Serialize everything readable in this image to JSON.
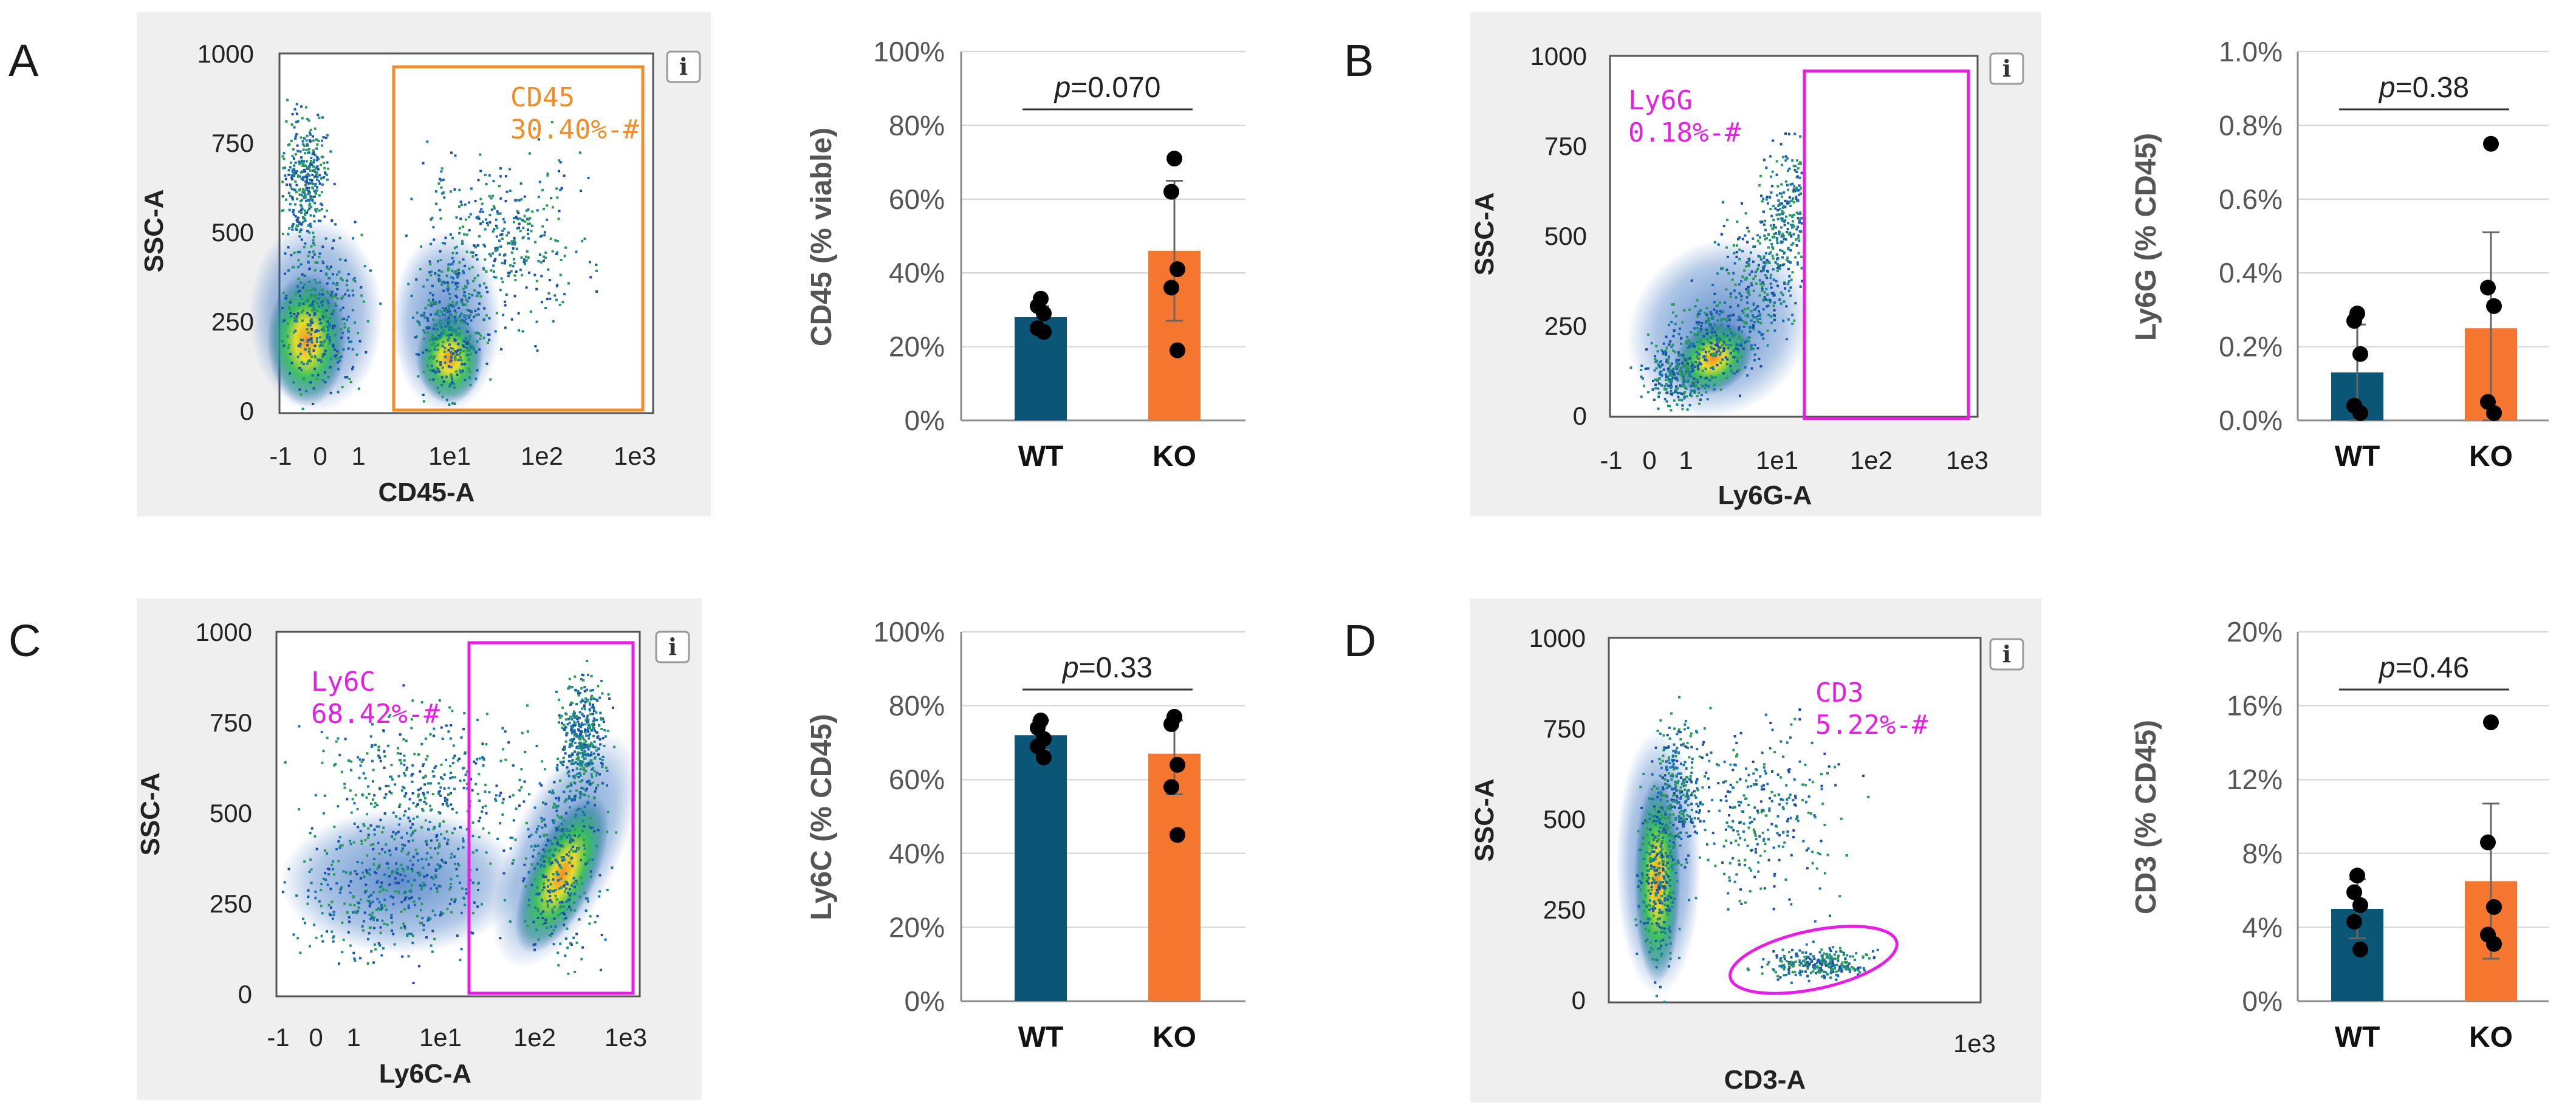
{
  "panels": [
    {
      "letter": "A",
      "flow": {
        "x_label": "CD45-A",
        "y_label": "SSC-A",
        "x_ticks": [
          "-1",
          "0",
          "1",
          "1e1",
          "1e2",
          "1e3"
        ],
        "y_ticks": [
          "1000",
          "750",
          "500",
          "250",
          "0"
        ],
        "gate_name": "CD45",
        "gate_value": "30.40%-#",
        "gate_shape": "rectangle",
        "gate_color": "#f28c28",
        "info_icon": "info-icon"
      },
      "bar": {
        "ylabel": "CD45 (% viable)",
        "yticks": [
          "100%",
          "80%",
          "60%",
          "40%",
          "20%",
          "0%"
        ],
        "p_value": "0.070"
      }
    },
    {
      "letter": "B",
      "flow": {
        "x_label": "Ly6G-A",
        "y_label": "SSC-A",
        "x_ticks": [
          "-1",
          "0",
          "1",
          "1e1",
          "1e2",
          "1e3"
        ],
        "y_ticks": [
          "1000",
          "750",
          "500",
          "250",
          "0"
        ],
        "gate_name": "Ly6G",
        "gate_value": "0.18%-#",
        "gate_shape": "rectangle",
        "gate_color": "#e61ee6",
        "info_icon": "info-icon"
      },
      "bar": {
        "ylabel": "Ly6G (% CD45)",
        "yticks": [
          "1.0%",
          "0.8%",
          "0.6%",
          "0.4%",
          "0.2%",
          "0.0%"
        ],
        "p_value": "0.38"
      }
    },
    {
      "letter": "C",
      "flow": {
        "x_label": "Ly6C-A",
        "y_label": "SSC-A",
        "x_ticks": [
          "-1",
          "0",
          "1",
          "1e1",
          "1e2",
          "1e3"
        ],
        "y_ticks": [
          "1000",
          "750",
          "500",
          "250",
          "0"
        ],
        "gate_name": "Ly6C",
        "gate_value": "68.42%-#",
        "gate_shape": "rectangle",
        "gate_color": "#e61ee6",
        "info_icon": "info-icon"
      },
      "bar": {
        "ylabel": "Ly6C (% CD45)",
        "yticks": [
          "100%",
          "80%",
          "60%",
          "40%",
          "20%",
          "0%"
        ],
        "p_value": "0.33"
      }
    },
    {
      "letter": "D",
      "flow": {
        "x_label": "CD3-A",
        "y_label": "SSC-A",
        "x_ticks": [
          "1e3"
        ],
        "y_ticks": [
          "1000",
          "750",
          "500",
          "250",
          "0"
        ],
        "gate_name": "CD3",
        "gate_value": "5.22%-#",
        "gate_shape": "ellipse",
        "gate_color": "#e61ee6",
        "info_icon": "info-icon"
      },
      "bar": {
        "ylabel": "CD3 (% CD45)",
        "yticks": [
          "20%",
          "16%",
          "12%",
          "8%",
          "4%",
          "0%"
        ],
        "p_value": "0.46"
      }
    }
  ],
  "chart_data": [
    {
      "type": "bar",
      "title": "",
      "xlabel": "",
      "ylabel": "CD45 (% viable)",
      "ylim": [
        0,
        100
      ],
      "categories": [
        "WT",
        "KO"
      ],
      "colors": [
        "#0b5676",
        "#f4762f"
      ],
      "values": [
        28,
        46
      ],
      "error_upper": [
        31,
        65
      ],
      "error_lower": [
        25,
        27
      ],
      "points": [
        [
          33,
          31,
          29,
          25,
          24
        ],
        [
          71,
          62,
          41,
          36,
          19
        ]
      ],
      "annotation": "p=0.070"
    },
    {
      "type": "bar",
      "title": "",
      "xlabel": "",
      "ylabel": "Ly6G (% CD45)",
      "ylim": [
        0,
        1.0
      ],
      "categories": [
        "WT",
        "KO"
      ],
      "colors": [
        "#0b5676",
        "#f4762f"
      ],
      "values": [
        0.13,
        0.25
      ],
      "error_upper": [
        0.26,
        0.51
      ],
      "error_lower": [
        0.0,
        0.0
      ],
      "points": [
        [
          0.29,
          0.27,
          0.18,
          0.04,
          0.02
        ],
        [
          0.75,
          0.36,
          0.31,
          0.05,
          0.02
        ]
      ],
      "annotation": "p=0.38"
    },
    {
      "type": "bar",
      "title": "",
      "xlabel": "",
      "ylabel": "Ly6C (% CD45)",
      "ylim": [
        0,
        100
      ],
      "categories": [
        "WT",
        "KO"
      ],
      "colors": [
        "#0b5676",
        "#f4762f"
      ],
      "values": [
        72,
        67
      ],
      "error_upper": [
        76,
        76
      ],
      "error_lower": [
        68,
        56
      ],
      "points": [
        [
          76,
          74,
          71,
          69,
          66
        ],
        [
          77,
          75,
          64,
          58,
          45
        ]
      ],
      "annotation": "p=0.33"
    },
    {
      "type": "bar",
      "title": "",
      "xlabel": "",
      "ylabel": "CD3 (% CD45)",
      "ylim": [
        0,
        20
      ],
      "categories": [
        "WT",
        "KO"
      ],
      "colors": [
        "#0b5676",
        "#f4762f"
      ],
      "values": [
        5.0,
        6.5
      ],
      "error_upper": [
        6.6,
        10.7
      ],
      "error_lower": [
        3.4,
        2.3
      ],
      "points": [
        [
          6.8,
          5.9,
          5.2,
          4.3,
          2.8
        ],
        [
          15.1,
          8.6,
          5.1,
          3.6,
          3.1
        ]
      ],
      "annotation": "p=0.46"
    }
  ]
}
